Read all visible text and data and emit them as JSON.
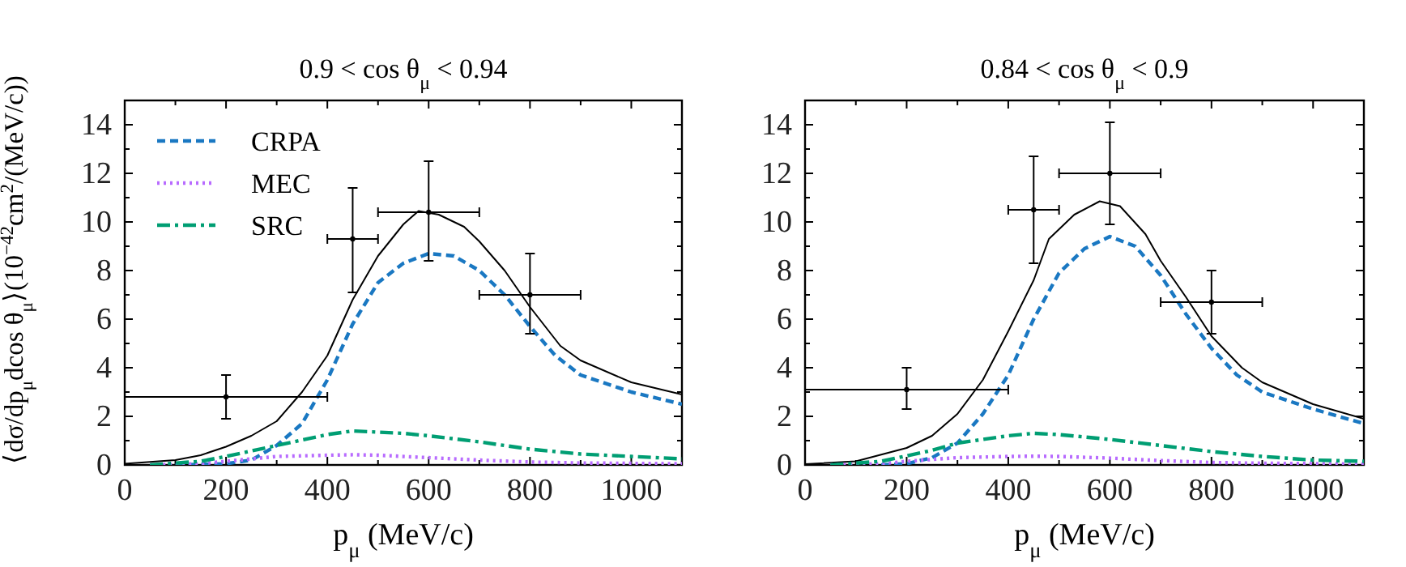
{
  "chart_data": [
    {
      "type": "line",
      "title": "0.9 < cos θ$_{μ}$ < 0.94",
      "xlabel": "p$_{μ}$ (MeV/c)",
      "ylabel": "⟨dσ/dp$_{μ}$dcos θ$_{μ}$⟩(10$^{−42}$cm$^{2}$/(MeV/c))",
      "xlim": [
        0,
        1100
      ],
      "ylim": [
        0,
        15
      ],
      "xticks": [
        0,
        {
          "value": 100,
          "label": null
        },
        200,
        {
          "value": 300,
          "label": null
        },
        400,
        {
          "value": 500,
          "label": null
        },
        600,
        {
          "value": 700,
          "label": null
        },
        800,
        {
          "value": 900,
          "label": null
        },
        1000
      ],
      "yticks": [
        0,
        {
          "value": 1,
          "label": null
        },
        2,
        {
          "value": 3,
          "label": null
        },
        4,
        {
          "value": 5,
          "label": null
        },
        6,
        {
          "value": 7,
          "label": null
        },
        8,
        {
          "value": 9,
          "label": null
        },
        10,
        {
          "value": 11,
          "label": null
        },
        12,
        {
          "value": 13,
          "label": null
        },
        14
      ],
      "legend": "top left",
      "grid": false,
      "series": [
        {
          "color": "#000000",
          "line_style": "solid",
          "x": [
            0,
            100,
            150,
            200,
            250,
            300,
            350,
            400,
            450,
            500,
            550,
            580,
            620,
            670,
            700,
            750,
            800,
            860,
            900,
            1000,
            1100
          ],
          "values": [
            0.05,
            0.2,
            0.4,
            0.75,
            1.2,
            1.8,
            3.0,
            4.5,
            6.8,
            8.6,
            9.9,
            10.45,
            10.3,
            9.8,
            9.2,
            8.0,
            6.5,
            4.9,
            4.3,
            3.4,
            2.9
          ]
        },
        {
          "name": "CRPA",
          "color": "#1a78c2",
          "line_style": "dashed",
          "x": [
            100,
            200,
            250,
            300,
            350,
            400,
            450,
            500,
            550,
            600,
            650,
            700,
            750,
            800,
            850,
            900,
            1000,
            1100
          ],
          "values": [
            0,
            0.05,
            0.2,
            0.8,
            1.7,
            3.5,
            5.8,
            7.5,
            8.3,
            8.7,
            8.6,
            8.0,
            7.0,
            5.7,
            4.5,
            3.7,
            3.0,
            2.5
          ]
        },
        {
          "name": "MEC",
          "color": "#b86bff",
          "line_style": "dotted",
          "x": [
            50,
            150,
            200,
            300,
            400,
            450,
            500,
            600,
            700,
            800,
            900,
            1100
          ],
          "values": [
            0,
            0.05,
            0.15,
            0.35,
            0.4,
            0.42,
            0.4,
            0.3,
            0.2,
            0.12,
            0.08,
            0.05
          ]
        },
        {
          "name": "SRC",
          "color": "#009e73",
          "line_style": "dashdot",
          "x": [
            50,
            150,
            200,
            300,
            400,
            450,
            500,
            550,
            600,
            700,
            800,
            900,
            1000,
            1100
          ],
          "values": [
            0,
            0.15,
            0.35,
            0.8,
            1.25,
            1.4,
            1.35,
            1.3,
            1.2,
            0.95,
            0.65,
            0.45,
            0.35,
            0.25
          ]
        },
        {
          "type": "scatter",
          "color": "#000000",
          "marker": "circle",
          "x": [
            200,
            450,
            600,
            800
          ],
          "values": [
            2.8,
            9.3,
            10.4,
            7.0
          ],
          "errors": [
            [
              1.9,
              3.7
            ],
            [
              7.1,
              11.4
            ],
            [
              8.4,
              12.5
            ],
            [
              5.4,
              8.7
            ]
          ],
          "xerrors": [
            [
              0,
              400
            ],
            [
              400,
              500
            ],
            [
              500,
              700
            ],
            [
              700,
              900
            ]
          ]
        }
      ]
    },
    {
      "type": "line",
      "title": "0.84 < cos θ$_{μ}$ < 0.9",
      "xlabel": "p$_{μ}$ (MeV/c)",
      "xlim": [
        0,
        1100
      ],
      "ylim": [
        0,
        15
      ],
      "xticks": [
        0,
        {
          "value": 100,
          "label": null
        },
        200,
        {
          "value": 300,
          "label": null
        },
        400,
        {
          "value": 500,
          "label": null
        },
        600,
        {
          "value": 700,
          "label": null
        },
        800,
        {
          "value": 900,
          "label": null
        },
        1000
      ],
      "yticks": [
        0,
        {
          "value": 1,
          "label": null
        },
        2,
        {
          "value": 3,
          "label": null
        },
        4,
        {
          "value": 5,
          "label": null
        },
        6,
        {
          "value": 7,
          "label": null
        },
        8,
        {
          "value": 9,
          "label": null
        },
        10,
        {
          "value": 11,
          "label": null
        },
        12,
        {
          "value": 13,
          "label": null
        },
        14
      ],
      "grid": false,
      "series": [
        {
          "color": "#000000",
          "line_style": "solid",
          "x": [
            0,
            100,
            200,
            250,
            300,
            350,
            400,
            450,
            480,
            530,
            580,
            620,
            670,
            700,
            750,
            800,
            860,
            900,
            1000,
            1100
          ],
          "values": [
            0.03,
            0.15,
            0.7,
            1.2,
            2.1,
            3.5,
            5.5,
            7.6,
            9.3,
            10.3,
            10.85,
            10.65,
            9.5,
            8.4,
            6.9,
            5.3,
            4.0,
            3.4,
            2.5,
            1.9
          ]
        },
        {
          "color": "#1a78c2",
          "line_style": "dashed",
          "x": [
            150,
            200,
            250,
            300,
            350,
            400,
            450,
            500,
            550,
            600,
            650,
            700,
            750,
            800,
            850,
            900,
            1000,
            1100
          ],
          "values": [
            0,
            0.05,
            0.3,
            0.9,
            2.1,
            3.7,
            6.0,
            7.9,
            8.9,
            9.4,
            9.0,
            7.8,
            6.2,
            4.8,
            3.7,
            3.0,
            2.3,
            1.7
          ]
        },
        {
          "color": "#b86bff",
          "line_style": "dotted",
          "x": [
            50,
            150,
            200,
            300,
            400,
            450,
            500,
            600,
            700,
            800,
            900,
            1100
          ],
          "values": [
            0,
            0.05,
            0.15,
            0.3,
            0.35,
            0.36,
            0.35,
            0.28,
            0.18,
            0.1,
            0.07,
            0.04
          ]
        },
        {
          "color": "#009e73",
          "line_style": "dashdot",
          "x": [
            50,
            150,
            250,
            300,
            400,
            450,
            500,
            600,
            700,
            800,
            900,
            1000,
            1100
          ],
          "values": [
            0,
            0.15,
            0.6,
            0.9,
            1.2,
            1.3,
            1.25,
            1.05,
            0.8,
            0.55,
            0.35,
            0.2,
            0.15
          ]
        },
        {
          "type": "scatter",
          "color": "#000000",
          "marker": "circle",
          "x": [
            200,
            450,
            600,
            800
          ],
          "values": [
            3.1,
            10.5,
            12.0,
            6.7
          ],
          "errors": [
            [
              2.3,
              4.0
            ],
            [
              8.3,
              12.7
            ],
            [
              9.9,
              14.1
            ],
            [
              5.4,
              8.0
            ]
          ],
          "xerrors": [
            [
              0,
              400
            ],
            [
              400,
              500
            ],
            [
              500,
              700
            ],
            [
              700,
              900
            ]
          ]
        }
      ]
    }
  ]
}
